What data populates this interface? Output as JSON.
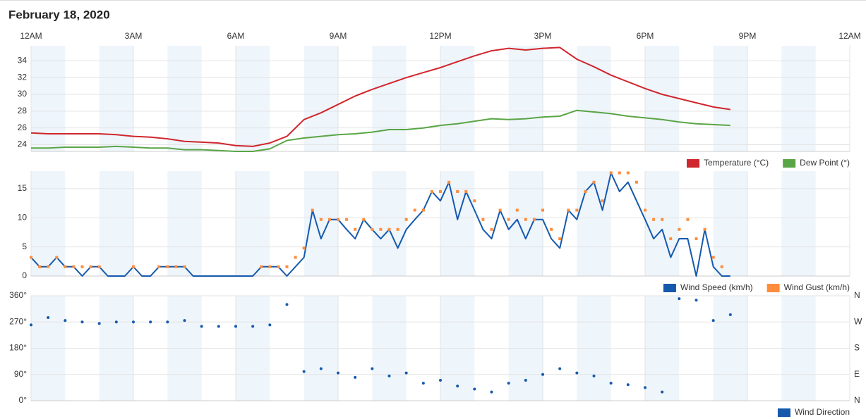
{
  "header": {
    "title": "February 18, 2020"
  },
  "chart_data": [
    {
      "type": "line",
      "xlim": [
        0,
        24
      ],
      "xticks": [
        {
          "value": 0,
          "label": "12AM"
        },
        {
          "value": 3,
          "label": "3AM"
        },
        {
          "value": 6,
          "label": "6AM"
        },
        {
          "value": 9,
          "label": "9AM"
        },
        {
          "value": 12,
          "label": "12PM"
        },
        {
          "value": 15,
          "label": "3PM"
        },
        {
          "value": 18,
          "label": "6PM"
        },
        {
          "value": 21,
          "label": "9PM"
        },
        {
          "value": 24,
          "label": "12AM"
        }
      ],
      "ylim": [
        23.2,
        35.8
      ],
      "yticks": [
        24,
        26,
        28,
        30,
        32,
        34
      ],
      "grid": true,
      "x": [
        0,
        0.5,
        1,
        1.5,
        2,
        2.5,
        3,
        3.5,
        4,
        4.5,
        5,
        5.5,
        6,
        6.5,
        7,
        7.5,
        8,
        8.5,
        9,
        9.5,
        10,
        10.5,
        11,
        11.5,
        12,
        12.5,
        13,
        13.5,
        14,
        14.5,
        15,
        15.5,
        16,
        16.5,
        17,
        17.5,
        18,
        18.5,
        19,
        19.5,
        20,
        20.5
      ],
      "series": [
        {
          "name": "Temperature (°C)",
          "color": "#d0262d",
          "mode": "line",
          "values": [
            25.4,
            25.3,
            25.3,
            25.3,
            25.3,
            25.2,
            25.0,
            24.9,
            24.7,
            24.4,
            24.3,
            24.2,
            23.9,
            23.8,
            24.2,
            25.0,
            27.0,
            27.8,
            28.8,
            29.8,
            30.6,
            31.3,
            32.0,
            32.6,
            33.2,
            33.9,
            34.6,
            35.2,
            35.5,
            35.3,
            35.5,
            35.6,
            34.2,
            33.3,
            32.3,
            31.5,
            30.7,
            30.0,
            29.5,
            29.0,
            28.5,
            28.2
          ]
        },
        {
          "name": "Dew Point (°)",
          "color": "#5aa546",
          "mode": "line",
          "values": [
            23.6,
            23.6,
            23.7,
            23.7,
            23.7,
            23.8,
            23.7,
            23.6,
            23.6,
            23.4,
            23.4,
            23.3,
            23.2,
            23.2,
            23.5,
            24.5,
            24.8,
            25.0,
            25.2,
            25.3,
            25.5,
            25.8,
            25.8,
            26.0,
            26.3,
            26.5,
            26.8,
            27.1,
            27.0,
            27.1,
            27.3,
            27.4,
            28.1,
            27.9,
            27.7,
            27.4,
            27.2,
            27.0,
            26.7,
            26.5,
            26.4,
            26.3
          ]
        }
      ]
    },
    {
      "type": "line",
      "xlim": [
        0,
        24
      ],
      "ylim": [
        0,
        18
      ],
      "yticks": [
        0,
        5,
        10,
        15
      ],
      "grid": true,
      "x": [
        0,
        0.25,
        0.5,
        0.75,
        1,
        1.25,
        1.5,
        1.75,
        2,
        2.25,
        2.5,
        2.75,
        3,
        3.25,
        3.5,
        3.75,
        4,
        4.25,
        4.5,
        4.75,
        5,
        5.25,
        5.5,
        5.75,
        6,
        6.25,
        6.5,
        6.75,
        7,
        7.25,
        7.5,
        7.75,
        8,
        8.25,
        8.5,
        8.75,
        9,
        9.25,
        9.5,
        9.75,
        10,
        10.25,
        10.5,
        10.75,
        11,
        11.25,
        11.5,
        11.75,
        12,
        12.25,
        12.5,
        12.75,
        13,
        13.25,
        13.5,
        13.75,
        14,
        14.25,
        14.5,
        14.75,
        15,
        15.25,
        15.5,
        15.75,
        16,
        16.25,
        16.5,
        16.75,
        17,
        17.25,
        17.5,
        17.75,
        18,
        18.25,
        18.5,
        18.75,
        19,
        19.25,
        19.5,
        19.75,
        20,
        20.25,
        20.5
      ],
      "series": [
        {
          "name": "Wind Speed (km/h)",
          "color": "#1559ad",
          "mode": "line",
          "values": [
            3.2,
            1.6,
            1.6,
            3.2,
            1.6,
            1.6,
            0,
            1.6,
            1.6,
            0,
            0,
            0,
            1.6,
            0,
            0,
            1.6,
            1.6,
            1.6,
            1.6,
            0,
            0,
            0,
            0,
            0,
            0,
            0,
            0,
            1.6,
            1.6,
            1.6,
            0,
            1.6,
            3.2,
            11.3,
            6.4,
            9.7,
            9.7,
            8.0,
            6.4,
            9.7,
            8.0,
            6.4,
            8.0,
            4.8,
            8.0,
            9.7,
            11.3,
            14.5,
            12.9,
            16.1,
            9.7,
            14.5,
            11.3,
            8.0,
            6.4,
            11.3,
            8.0,
            9.7,
            6.4,
            9.7,
            9.7,
            6.4,
            4.8,
            11.3,
            9.7,
            14.5,
            16.1,
            11.3,
            17.7,
            14.5,
            16.1,
            12.9,
            9.7,
            6.4,
            8.0,
            3.2,
            6.4,
            6.4,
            0,
            8.0,
            1.6,
            0,
            0
          ]
        },
        {
          "name": "Wind Gust (km/h)",
          "color": "#ff8c3a",
          "mode": "markers",
          "values": [
            3.2,
            1.6,
            1.6,
            3.2,
            1.6,
            1.6,
            1.6,
            1.6,
            1.6,
            null,
            null,
            null,
            1.6,
            null,
            null,
            1.6,
            1.6,
            1.6,
            1.6,
            null,
            null,
            null,
            null,
            null,
            null,
            null,
            null,
            1.6,
            1.6,
            1.6,
            1.6,
            3.2,
            4.8,
            11.3,
            9.7,
            9.7,
            9.7,
            9.7,
            8.0,
            9.7,
            8.0,
            8.0,
            8.0,
            8.0,
            9.7,
            11.3,
            11.3,
            14.5,
            14.5,
            16.1,
            14.5,
            14.5,
            12.9,
            9.7,
            8.0,
            11.3,
            9.7,
            11.3,
            9.7,
            9.7,
            11.3,
            8.0,
            6.4,
            11.3,
            11.3,
            14.5,
            16.1,
            12.9,
            17.7,
            17.7,
            17.7,
            16.1,
            11.3,
            9.7,
            9.7,
            6.4,
            8.0,
            9.7,
            6.4,
            8.0,
            3.2,
            1.6,
            null
          ]
        }
      ]
    },
    {
      "type": "scatter",
      "xlim": [
        0,
        24
      ],
      "ylim": [
        0,
        360
      ],
      "yticks": [
        {
          "value": 0,
          "label": "0°"
        },
        {
          "value": 90,
          "label": "90°"
        },
        {
          "value": 180,
          "label": "180°"
        },
        {
          "value": 270,
          "label": "270°"
        },
        {
          "value": 360,
          "label": "360°"
        }
      ],
      "y2lim": [
        0,
        360
      ],
      "y2ticks": [
        {
          "value": 0,
          "label": "N"
        },
        {
          "value": 90,
          "label": "E"
        },
        {
          "value": 180,
          "label": "S"
        },
        {
          "value": 270,
          "label": "W"
        },
        {
          "value": 360,
          "label": "N"
        }
      ],
      "grid": true,
      "x": [
        0,
        0.5,
        1,
        1.5,
        2,
        2.5,
        3,
        3.5,
        4,
        4.5,
        5,
        5.5,
        6,
        6.5,
        7,
        7.5,
        8,
        8.5,
        9,
        9.5,
        10,
        10.5,
        11,
        11.5,
        12,
        12.5,
        13,
        13.5,
        14,
        14.5,
        15,
        15.5,
        16,
        16.5,
        17,
        17.5,
        18,
        18.5,
        19,
        19.5,
        20,
        20.5
      ],
      "series": [
        {
          "name": "Wind Direction",
          "color": "#1559ad",
          "values": [
            260,
            285,
            275,
            270,
            265,
            270,
            270,
            270,
            270,
            275,
            255,
            255,
            255,
            255,
            260,
            330,
            100,
            110,
            95,
            80,
            110,
            85,
            95,
            60,
            70,
            50,
            40,
            30,
            60,
            70,
            90,
            110,
            95,
            85,
            60,
            55,
            45,
            30,
            350,
            345,
            275,
            295
          ]
        }
      ]
    }
  ]
}
